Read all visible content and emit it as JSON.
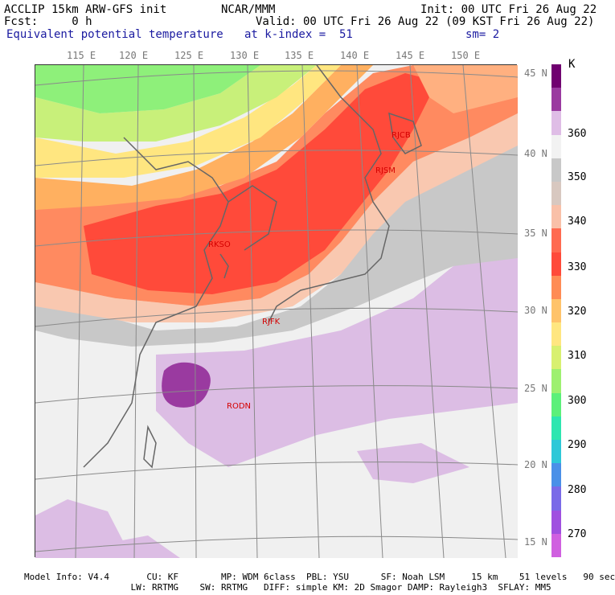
{
  "header": {
    "model": "ACCLIP 15km ARW-GFS init",
    "org": "NCAR/MMM",
    "init": "Init: 00 UTC Fri 26 Aug 22",
    "fcst": "Fcst:     0 h",
    "valid": "Valid: 00 UTC Fri 26 Aug 22 (09 KST Fri 26 Aug 22)",
    "field": "Equivalent potential temperature",
    "level": "at k-index =  51",
    "smooth": "sm= 2"
  },
  "lon_labels": [
    "115 E",
    "120 E",
    "125 E",
    "130 E",
    "135 E",
    "140 E",
    "145 E",
    "150 E"
  ],
  "lat_labels": [
    "45 N",
    "40 N",
    "35 N",
    "30 N",
    "25 N",
    "20 N",
    "15 N"
  ],
  "colorbar": {
    "unit": "K",
    "labels": [
      "360",
      "350",
      "340",
      "330",
      "320",
      "310",
      "300",
      "290",
      "280",
      "270"
    ],
    "colors": [
      "#700070",
      "#9a3aa0",
      "#dfbde6",
      "#f2f2f2",
      "#c8c8c8",
      "#d8c8c0",
      "#f9c0a8",
      "#ff6a50",
      "#ff4a3a",
      "#ff8c55",
      "#ffc36a",
      "#ffe680",
      "#d8f070",
      "#9ef070",
      "#5cf07a",
      "#2ee6b0",
      "#2ec8d8",
      "#4a90e8",
      "#7a6ae8",
      "#a050e0",
      "#d060e0"
    ]
  },
  "stations": [
    {
      "id": "RJCB",
      "text": "RJCB"
    },
    {
      "id": "RJSM",
      "text": "RJSM"
    },
    {
      "id": "RKSO",
      "text": "RKSO"
    },
    {
      "id": "RJFK",
      "text": "RJFK"
    },
    {
      "id": "RODN",
      "text": "RODN"
    }
  ],
  "footer": {
    "line1": "Model Info: V4.4       CU: KF        MP: WDM 6class  PBL: YSU      SF: Noah LSM     15 km    51 levels   90 sec",
    "line2": "                    LW: RRTMG    SW: RRTMG   DIFF: simple KM: 2D Smagor DAMP: Rayleigh3  SFLAY: MM5"
  }
}
